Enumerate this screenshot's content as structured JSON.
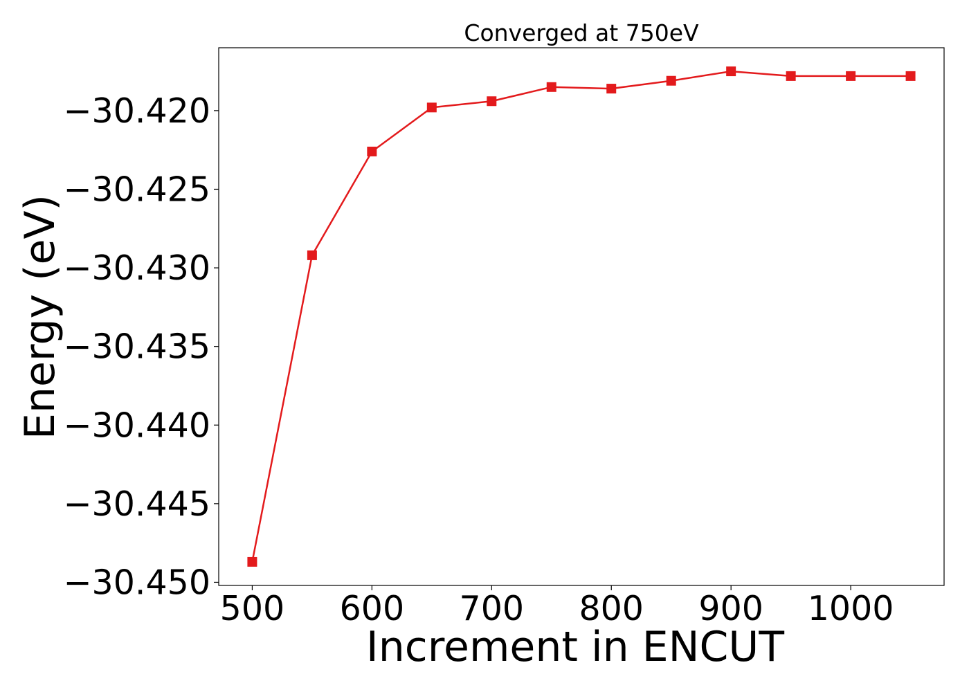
{
  "chart_data": {
    "type": "line",
    "title": "Converged at 750eV",
    "xlabel": "Increment in ENCUT",
    "ylabel": "Energy (eV)",
    "xlim": [
      472,
      1078
    ],
    "ylim": [
      -30.4502,
      -30.416
    ],
    "xticks": [
      500,
      600,
      700,
      800,
      900,
      1000
    ],
    "xtick_labels": [
      "500",
      "600",
      "700",
      "800",
      "900",
      "1000"
    ],
    "yticks": [
      -30.45,
      -30.445,
      -30.44,
      -30.435,
      -30.43,
      -30.425,
      -30.42
    ],
    "ytick_labels": [
      "−30.450",
      "−30.445",
      "−30.440",
      "−30.435",
      "−30.430",
      "−30.425",
      "−30.420"
    ],
    "grid": false,
    "series": [
      {
        "color": "#e31a1c",
        "marker": "square",
        "x": [
          500,
          550,
          600,
          650,
          700,
          750,
          800,
          850,
          900,
          950,
          1000,
          1050
        ],
        "y": [
          -30.4487,
          -30.4292,
          -30.4226,
          -30.4198,
          -30.4194,
          -30.4185,
          -30.4186,
          -30.4181,
          -30.4175,
          -30.4178,
          -30.4178,
          -30.4178
        ]
      }
    ]
  }
}
